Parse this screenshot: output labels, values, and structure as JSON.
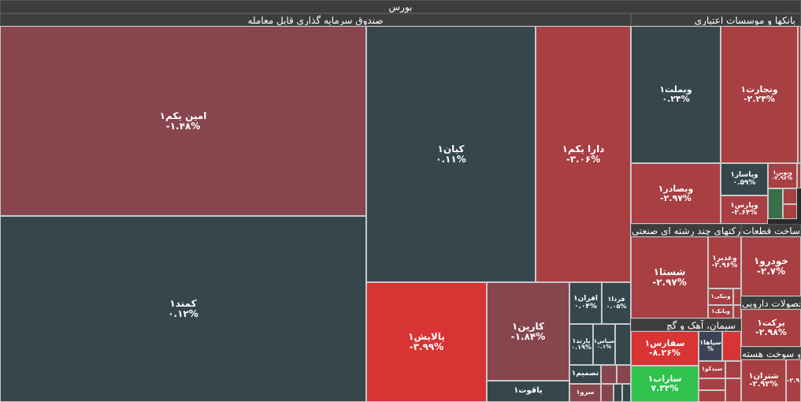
{
  "market_title": "بورس",
  "sectors": {
    "etf": "صندوق سرمایه گذاری قابل معامله",
    "banks": "بانکها و موسسات اعتباری",
    "multi": "شرکتهای چند رشته ای صنعتی",
    "auto": "ساخت قطعات",
    "cement": "سیمان، آهک و گچ",
    "pharma": "محصولات دارویی",
    "fuel": "کک و سوخت هسته"
  },
  "tiles": {
    "amin": {
      "name": "امین یکم۱",
      "pct": "-۱.۴۸%"
    },
    "kamand": {
      "name": "کمند۱",
      "pct": "۰.۱۲%"
    },
    "kian": {
      "name": "کیان۱",
      "pct": "۰.۱۱%"
    },
    "dara": {
      "name": "دارا یکم۱",
      "pct": "-۳.۰۶%"
    },
    "palayesh": {
      "name": "پالایش۱",
      "pct": "-۳.۹۹%"
    },
    "karin": {
      "name": "کارین۱",
      "pct": "-۱.۸۴%"
    },
    "afran": {
      "name": "افران۱",
      "pct": "۰.۰۴%"
    },
    "farda": {
      "name": "فردا۱",
      "pct": "۰.۰۵%"
    },
    "parand": {
      "name": "پارند۱",
      "pct": "۰.۱۹%"
    },
    "sipas": {
      "name": "سپاس۱",
      "pct": "۰.۱%"
    },
    "tasmim": {
      "name": "تصمیم۱",
      "pct": ""
    },
    "yaghut": {
      "name": "یاقوت۱",
      "pct": ""
    },
    "sarv": {
      "name": "سرو۱",
      "pct": ""
    },
    "vabmellat": {
      "name": "وبملت۱",
      "pct": "۰.۲۴%"
    },
    "vatejarat": {
      "name": "وتجارت۱",
      "pct": "-۲.۲۴%"
    },
    "vabsader": {
      "name": "وبصادر۱",
      "pct": "-۲.۹۷%"
    },
    "vpasar": {
      "name": "وپاسار۱",
      "pct": "۰.۵۹%"
    },
    "vnovin": {
      "name": "ونوین۱",
      "pct": "-۲.۹۶%"
    },
    "vparsian": {
      "name": "وپارس۱",
      "pct": "-۲.۶۴%"
    },
    "shasta": {
      "name": "شستا۱",
      "pct": "-۲.۹۷%"
    },
    "vaghadir": {
      "name": "وغدیر۱",
      "pct": "-۲.۹۶%"
    },
    "vanik": {
      "name": "ونیکی۱",
      "pct": ""
    },
    "vbank": {
      "name": "وبانک۱",
      "pct": ""
    },
    "khodro": {
      "name": "خودرو۱",
      "pct": "-۲.۷%"
    },
    "safars": {
      "name": "سفارس۱",
      "pct": "-۸.۲۶%"
    },
    "sepaha": {
      "name": "سپاها۱",
      "pct": "%"
    },
    "sarab": {
      "name": "ساراب۱",
      "pct": "۷.۳۲%"
    },
    "sidco": {
      "name": "سیدکو۱",
      "pct": ""
    },
    "barekat": {
      "name": "برکت۱",
      "pct": "-۲.۹۸%"
    },
    "shetran": {
      "name": "شتران۱",
      "pct": "-۲.۹۲%"
    },
    "edge": {
      "name": "",
      "pct": "-۲.۹"
    }
  }
}
